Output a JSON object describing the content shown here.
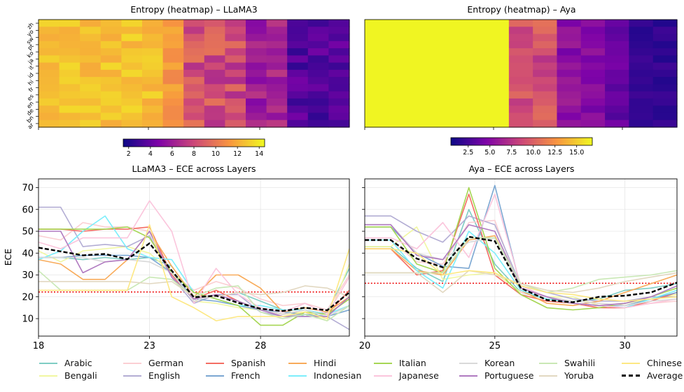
{
  "heatmaps": [
    {
      "title": "Entropy (heatmap) – LLaMA3",
      "colorbar_ticks": [
        "2",
        "4",
        "6",
        "8",
        "10",
        "12",
        "14"
      ],
      "colorbar_range": [
        1.5,
        14.5
      ],
      "row_tick_labels": [
        "zh",
        "yo",
        "sw",
        "pt",
        "ko",
        "ja",
        "it",
        "id",
        "hi",
        "fr",
        "es",
        "en",
        "de",
        "bn",
        "ar"
      ]
    },
    {
      "title": "Entropy (heatmap) – Aya",
      "colorbar_ticks": [
        "2.5",
        "5.0",
        "7.5",
        "10.0",
        "12.5",
        "15.0"
      ],
      "colorbar_range": [
        0.5,
        16.8
      ]
    }
  ],
  "chart_data": [
    {
      "type": "line",
      "title": "LLaMA3 – ECE across Layers",
      "ylabel": "ECE",
      "x": [
        18,
        19,
        20,
        21,
        22,
        23,
        24,
        25,
        26,
        27,
        28,
        29,
        30,
        31,
        32
      ],
      "xticks": [
        "18",
        "23",
        "28"
      ],
      "yticks": [
        "10",
        "20",
        "30",
        "40",
        "50",
        "60",
        "70"
      ],
      "xlim": [
        18,
        32
      ],
      "ylim": [
        2,
        74
      ],
      "grid": true,
      "reference_line": {
        "value": 22.2,
        "color": "#ee0000"
      },
      "series": [
        {
          "name": "Arabic",
          "color": "#7fcdc4",
          "values": [
            38,
            38,
            37,
            38,
            37,
            38,
            34,
            20,
            20,
            22,
            18,
            14,
            11,
            13,
            33
          ]
        },
        {
          "name": "Bengali",
          "color": "#f1f7a1",
          "values": [
            41,
            36,
            41,
            42,
            43,
            40,
            31,
            18,
            17,
            15,
            14,
            12,
            13,
            9,
            35
          ]
        },
        {
          "name": "German",
          "color": "#fbcfd3",
          "values": [
            48,
            46,
            54,
            52,
            52,
            50,
            31,
            23,
            27,
            24,
            19,
            16,
            17,
            14,
            30
          ]
        },
        {
          "name": "English",
          "color": "#b3add4",
          "values": [
            61,
            61,
            43,
            44,
            43,
            48,
            29,
            17,
            21,
            21,
            13,
            11,
            12,
            11,
            5
          ]
        },
        {
          "name": "Spanish",
          "color": "#f46d63",
          "values": [
            51,
            51,
            50,
            51,
            51,
            52,
            30,
            19,
            23,
            18,
            14,
            12,
            14,
            12,
            23
          ]
        },
        {
          "name": "French",
          "color": "#7ba7d2",
          "values": [
            38,
            38,
            39,
            39,
            39,
            38,
            31,
            19,
            18,
            16,
            14,
            13,
            12,
            11,
            14
          ]
        },
        {
          "name": "Hindi",
          "color": "#f8ab5a",
          "values": [
            37,
            35,
            28,
            28,
            37,
            50,
            34,
            20,
            30,
            30,
            24,
            13,
            15,
            13,
            20
          ]
        },
        {
          "name": "Indonesian",
          "color": "#7ceefb",
          "values": [
            37,
            41,
            50,
            57,
            42,
            38,
            37,
            22,
            19,
            16,
            16,
            14,
            14,
            12,
            16
          ]
        },
        {
          "name": "Italian",
          "color": "#a6d654",
          "values": [
            51,
            51,
            51,
            51,
            52,
            47,
            31,
            22,
            19,
            16,
            7,
            7,
            13,
            12,
            19
          ]
        },
        {
          "name": "Japanese",
          "color": "#fbc5dc",
          "values": [
            45,
            42,
            47,
            47,
            47,
            64,
            50,
            17,
            33,
            21,
            15,
            13,
            17,
            12,
            29
          ]
        },
        {
          "name": "Korean",
          "color": "#d9d9d9",
          "values": [
            38,
            38,
            38,
            36,
            37,
            36,
            31,
            18,
            21,
            18,
            14,
            12,
            14,
            11,
            16
          ]
        },
        {
          "name": "Portuguese",
          "color": "#b07ac0",
          "values": [
            50,
            50,
            31,
            36,
            37,
            50,
            29,
            19,
            21,
            18,
            14,
            11,
            11,
            11,
            20
          ]
        },
        {
          "name": "Swahili",
          "color": "#c9e8b5",
          "values": [
            32,
            23,
            23,
            23,
            23,
            29,
            28,
            20,
            24,
            25,
            13,
            10,
            12,
            9,
            16
          ]
        },
        {
          "name": "Yoruba",
          "color": "#e2d8c1",
          "values": [
            27,
            27,
            27,
            27,
            27,
            26,
            27,
            20,
            20,
            22,
            21,
            22,
            25,
            24,
            20
          ]
        },
        {
          "name": "Chinese",
          "color": "#fde883",
          "values": [
            23,
            23,
            23,
            23,
            23,
            53,
            20,
            15,
            9,
            11,
            11,
            11,
            13,
            10,
            42
          ]
        },
        {
          "name": "Average",
          "color": "#000000",
          "dashed": true,
          "values": [
            42.5,
            40.8,
            39.0,
            39.6,
            37.2,
            44.5,
            32.0,
            19.8,
            20.5,
            17.2,
            14.5,
            13.5,
            15.0,
            13.8,
            22.0
          ]
        }
      ]
    },
    {
      "type": "line",
      "title": "Aya – ECE across Layers",
      "x": [
        20,
        21,
        22,
        23,
        24,
        25,
        26,
        27,
        28,
        29,
        30,
        31,
        32
      ],
      "xticks": [
        "20",
        "25",
        "30"
      ],
      "xlim": [
        20,
        32
      ],
      "ylim": [
        2,
        74
      ],
      "grid": true,
      "reference_line": {
        "value": 26.2,
        "color": "#ee0000"
      },
      "series": [
        {
          "name": "Arabic",
          "color": "#7fcdc4",
          "values": [
            43,
            43,
            33,
            27,
            60,
            35,
            22,
            19,
            18,
            19,
            23,
            24,
            26
          ]
        },
        {
          "name": "Bengali",
          "color": "#f1f7a1",
          "values": [
            43,
            43,
            52,
            28,
            30,
            31,
            22,
            20,
            20,
            16,
            17,
            19,
            21
          ]
        },
        {
          "name": "German",
          "color": "#fbcfd3",
          "values": [
            46,
            46,
            36,
            35,
            54,
            55,
            22,
            20,
            18,
            17,
            16,
            17,
            18
          ]
        },
        {
          "name": "English",
          "color": "#b3add4",
          "values": [
            57,
            57,
            50,
            45,
            57,
            53,
            25,
            22,
            19,
            18,
            18,
            20,
            20
          ]
        },
        {
          "name": "Spanish",
          "color": "#f46d63",
          "values": [
            42,
            42,
            30,
            32,
            67,
            30,
            21,
            18,
            17,
            15,
            15,
            18,
            22
          ]
        },
        {
          "name": "French",
          "color": "#7ba7d2",
          "values": [
            52,
            52,
            40,
            34,
            33,
            71,
            24,
            20,
            17,
            16,
            16,
            19,
            22
          ]
        },
        {
          "name": "Hindi",
          "color": "#f8ab5a",
          "values": [
            42,
            42,
            32,
            30,
            46,
            48,
            23,
            17,
            16,
            18,
            22,
            26,
            30
          ]
        },
        {
          "name": "Indonesian",
          "color": "#7ceefb",
          "values": [
            46,
            46,
            32,
            24,
            50,
            40,
            23,
            19,
            17,
            16,
            15,
            19,
            23
          ]
        },
        {
          "name": "Italian",
          "color": "#a6d654",
          "values": [
            52,
            52,
            35,
            31,
            70,
            33,
            21,
            15,
            14,
            15,
            17,
            20,
            24
          ]
        },
        {
          "name": "Japanese",
          "color": "#fbc5dc",
          "values": [
            47,
            47,
            42,
            54,
            38,
            67,
            25,
            20,
            17,
            16,
            15,
            17,
            19
          ]
        },
        {
          "name": "Korean",
          "color": "#d9d9d9",
          "values": [
            53,
            53,
            40,
            37,
            45,
            47,
            24,
            20,
            18,
            17,
            16,
            18,
            19
          ]
        },
        {
          "name": "Portuguese",
          "color": "#b07ac0",
          "values": [
            53,
            53,
            39,
            37,
            53,
            50,
            24,
            20,
            17,
            16,
            17,
            20,
            25
          ]
        },
        {
          "name": "Swahili",
          "color": "#c9e8b5",
          "values": [
            31,
            31,
            31,
            31,
            47,
            47,
            26,
            22,
            24,
            28,
            29,
            30,
            32
          ]
        },
        {
          "name": "Yoruba",
          "color": "#e2d8c1",
          "values": [
            31,
            31,
            31,
            22,
            32,
            30,
            26,
            23,
            22,
            24,
            27,
            29,
            31
          ]
        },
        {
          "name": "Chinese",
          "color": "#fde883",
          "values": [
            42,
            42,
            40,
            30,
            32,
            31,
            25,
            22,
            21,
            19,
            18,
            19,
            20
          ]
        },
        {
          "name": "Average",
          "color": "#000000",
          "dashed": true,
          "values": [
            46.0,
            46.0,
            37.5,
            33.5,
            47.5,
            45.5,
            24.0,
            18.5,
            17.5,
            20.0,
            20.5,
            22.0,
            26.5
          ]
        }
      ]
    }
  ]
}
